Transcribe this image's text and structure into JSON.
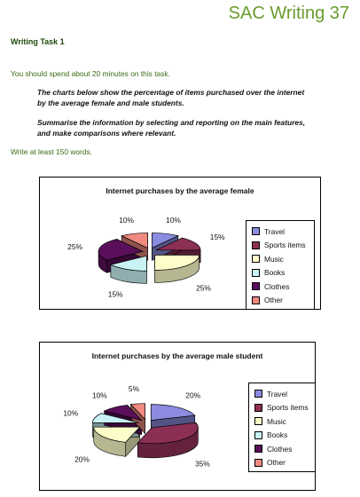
{
  "header": {
    "title": "SAC Writing 37"
  },
  "task": {
    "heading": "Writing Task 1",
    "time_note": "You should spend about 20 minutes on this task.",
    "prompt_lines": [
      "The charts below show the percentage of items purchased over the internet",
      "by the average female and male students.",
      "Summarise the information by selecting and reporting on the main features,",
      "and make comparisons where relevant."
    ],
    "word_count": "Write at least 150 words."
  },
  "colors": {
    "Travel": "#8b8be0",
    "Sports items": "#8b2f54",
    "Music": "#fdfdc9",
    "Books": "#c8f2f4",
    "Clothes": "#5a0f5a",
    "Other": "#f08a80"
  },
  "chart_data": [
    {
      "type": "pie",
      "style": "3d-exploded",
      "title": "Internet purchases by the average female",
      "categories": [
        "Travel",
        "Sports items",
        "Music",
        "Books",
        "Clothes",
        "Other"
      ],
      "values": [
        10,
        15,
        25,
        15,
        25,
        10
      ],
      "labels": [
        "10%",
        "15%",
        "25%",
        "15%",
        "25%",
        "10%"
      ],
      "legend": "right"
    },
    {
      "type": "pie",
      "style": "3d-exploded",
      "title": "Internet purchases by the average male student",
      "categories": [
        "Travel",
        "Sports items",
        "Music",
        "Books",
        "Clothes",
        "Other"
      ],
      "values": [
        20,
        35,
        20,
        10,
        10,
        5
      ],
      "labels": [
        "20%",
        "35%",
        "20%",
        "10%",
        "10%",
        "5%"
      ],
      "legend": "right"
    }
  ]
}
